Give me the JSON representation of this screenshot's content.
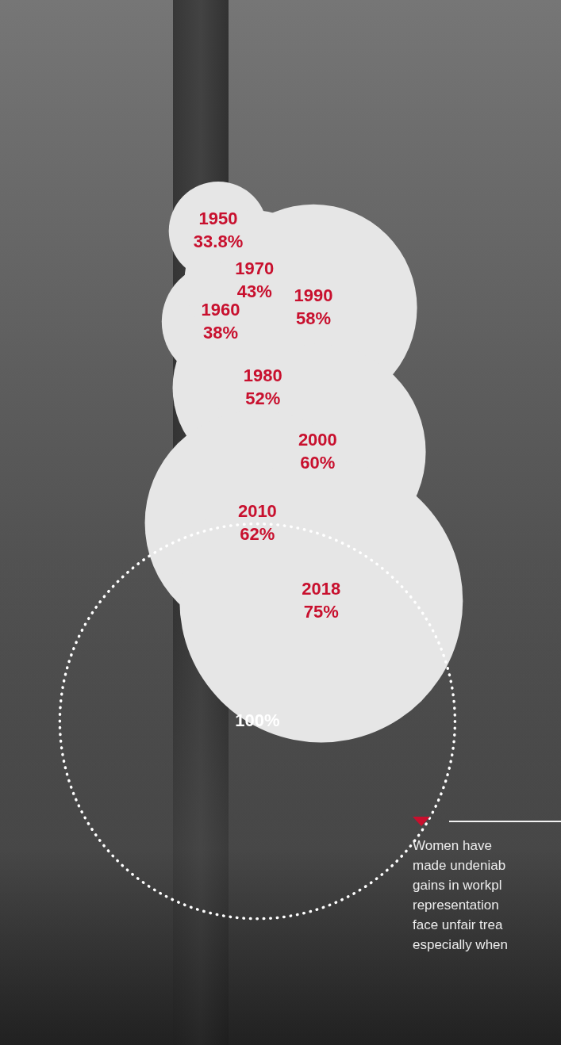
{
  "chart_data": {
    "type": "bubble",
    "categories": [
      "1950",
      "1960",
      "1970",
      "1980",
      "1990",
      "2000",
      "2010",
      "2018"
    ],
    "values": [
      33.8,
      38,
      43,
      52,
      58,
      60,
      62,
      75
    ],
    "value_labels": [
      "33.8%",
      "38%",
      "43%",
      "52%",
      "58%",
      "60%",
      "62%",
      "75%"
    ],
    "color": "#e6e6e6",
    "data_labels": true,
    "tick_labels": false,
    "grid": false,
    "reference": {
      "value": 100,
      "label": "100%"
    },
    "caption": [
      "Women have",
      "made undeniab",
      "gains in workpl",
      "representation",
      "face unfair trea",
      "especially when"
    ]
  }
}
